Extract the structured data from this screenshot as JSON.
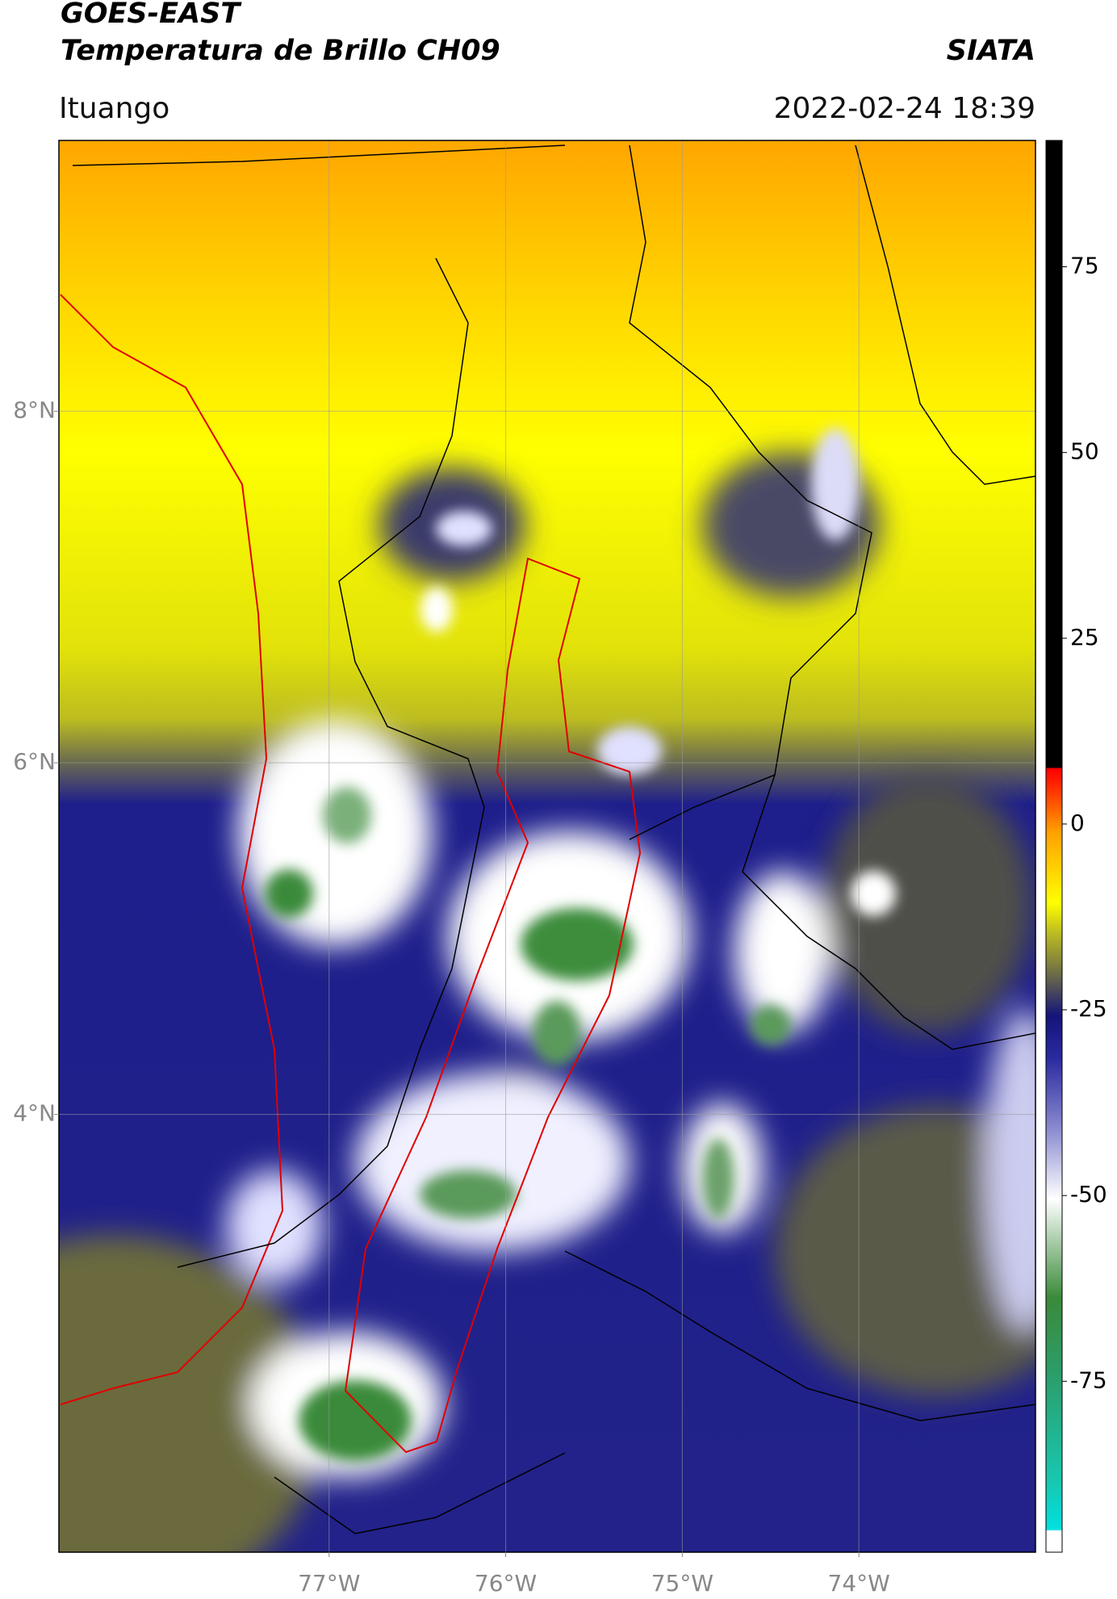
{
  "header": {
    "title": "GOES-EAST",
    "subtitle": "Temperatura de Brillo CH09",
    "source": "SIATA",
    "location": "Ituango",
    "datetime": "2022-02-24 18:39"
  },
  "map": {
    "xlim": [
      -78.53,
      -73.0
    ],
    "ylim": [
      1.51,
      9.54
    ],
    "xticks": [
      {
        "value": -77,
        "label": "77°W"
      },
      {
        "value": -76,
        "label": "76°W"
      },
      {
        "value": -75,
        "label": "75°W"
      },
      {
        "value": -74,
        "label": "74°W"
      }
    ],
    "yticks": [
      {
        "value": 8,
        "label": "8°N"
      },
      {
        "value": 6,
        "label": "6°N"
      },
      {
        "value": 4,
        "label": "4°N"
      }
    ],
    "grid": true
  },
  "colorbar": {
    "lim": [
      -98,
      92
    ],
    "ticks": [
      75,
      50,
      25,
      0,
      -25,
      -50,
      -75
    ]
  }
}
